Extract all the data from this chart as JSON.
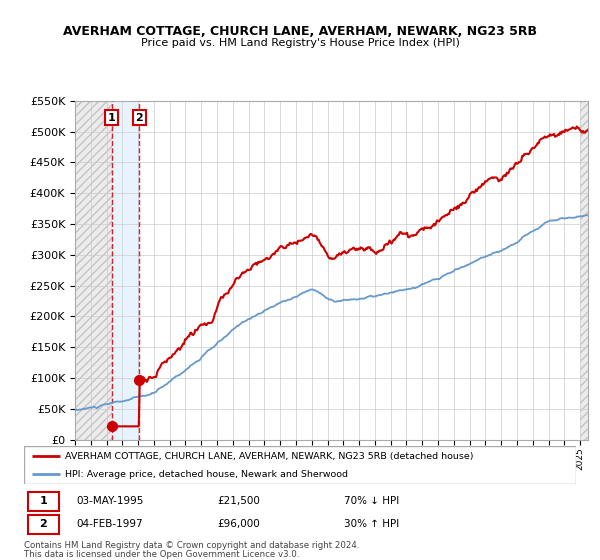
{
  "title": "AVERHAM COTTAGE, CHURCH LANE, AVERHAM, NEWARK, NG23 5RB",
  "subtitle": "Price paid vs. HM Land Registry's House Price Index (HPI)",
  "legend_line1": "AVERHAM COTTAGE, CHURCH LANE, AVERHAM, NEWARK, NG23 5RB (detached house)",
  "legend_line2": "HPI: Average price, detached house, Newark and Sherwood",
  "transaction1_date": "03-MAY-1995",
  "transaction1_price": 21500,
  "transaction1_label": "70% ↓ HPI",
  "transaction1_year": 1995.33,
  "transaction2_date": "04-FEB-1997",
  "transaction2_price": 96000,
  "transaction2_label": "30% ↑ HPI",
  "transaction2_year": 1997.08,
  "footer1": "Contains HM Land Registry data © Crown copyright and database right 2024.",
  "footer2": "This data is licensed under the Open Government Licence v3.0.",
  "property_color": "#cc0000",
  "hpi_color": "#6699cc",
  "shade_color": "#ddeeff",
  "ylim": [
    0,
    550000
  ],
  "xlim_start": 1993.0,
  "xlim_end": 2025.5
}
